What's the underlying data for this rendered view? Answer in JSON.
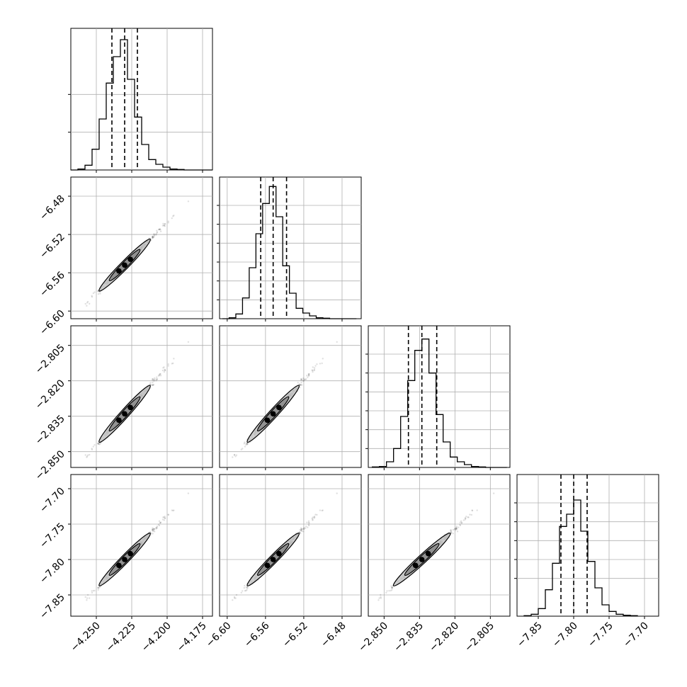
{
  "chart_data": {
    "type": "corner",
    "title": "",
    "parameters": [
      {
        "name": "",
        "range": [
          -4.268,
          -4.168
        ],
        "ticks": [
          -4.25,
          -4.225,
          -4.2,
          -4.175
        ],
        "tick_labels": [
          "−4.250",
          "−4.225",
          "−4.200",
          "−4.175"
        ],
        "quantiles": [
          -4.239,
          -4.23,
          -4.221
        ],
        "hist_bins": [
          -4.268,
          -4.263,
          -4.258,
          -4.253,
          -4.248,
          -4.243,
          -4.238,
          -4.233,
          -4.228,
          -4.223,
          -4.218,
          -4.213,
          -4.208,
          -4.203,
          -4.198,
          -4.193,
          -4.188,
          -4.183,
          -4.178,
          -4.173,
          -4.168
        ],
        "hist_counts": [
          0,
          1,
          5,
          22,
          54,
          92,
          120,
          138,
          96,
          56,
          27,
          11,
          6,
          3,
          1,
          0.5,
          0,
          0,
          0,
          0
        ],
        "hist_ymax": 150,
        "hist_ticks": [
          40,
          80
        ]
      },
      {
        "name": "",
        "range": [
          -6.608,
          -6.46
        ],
        "ticks": [
          -6.6,
          -6.56,
          -6.52,
          -6.48
        ],
        "tick_labels": [
          "−6.60",
          "−6.56",
          "−6.52",
          "−6.48"
        ],
        "quantiles": [
          -6.565,
          -6.552,
          -6.538
        ],
        "hist_bins": [
          -6.605,
          -6.598,
          -6.591,
          -6.584,
          -6.577,
          -6.57,
          -6.563,
          -6.556,
          -6.549,
          -6.542,
          -6.535,
          -6.528,
          -6.521,
          -6.514,
          -6.507,
          -6.5,
          -6.493,
          -6.486,
          -6.479,
          -6.472,
          -6.465
        ],
        "hist_counts": [
          0,
          1,
          5,
          22,
          54,
          90,
          122,
          140,
          108,
          56,
          27,
          11,
          6,
          3,
          1,
          0.5,
          0,
          0,
          0,
          0
        ],
        "hist_ymax": 150,
        "hist_ticks": [
          20,
          40,
          60,
          80,
          100,
          120
        ]
      },
      {
        "name": "",
        "range": [
          -2.8567,
          -2.7967
        ],
        "ticks": [
          -2.85,
          -2.835,
          -2.82,
          -2.805
        ],
        "tick_labels": [
          "−2.850",
          "−2.835",
          "−2.820",
          "−2.805"
        ],
        "quantiles": [
          -2.8397,
          -2.834,
          -2.8277
        ],
        "hist_bins": [
          -2.855,
          -2.852,
          -2.849,
          -2.846,
          -2.843,
          -2.84,
          -2.837,
          -2.834,
          -2.831,
          -2.828,
          -2.825,
          -2.822,
          -2.819,
          -2.816,
          -2.813,
          -2.81,
          -2.807,
          -2.804,
          -2.801,
          -2.798
        ],
        "hist_counts": [
          0.5,
          1,
          6,
          20,
          54,
          92,
          124,
          136,
          100,
          56,
          27,
          11,
          6,
          3,
          1,
          0.5,
          0,
          0,
          0
        ],
        "hist_ymax": 150,
        "hist_ticks": [
          20,
          40,
          60,
          80,
          100,
          120
        ]
      },
      {
        "name": "",
        "range": [
          -7.88,
          -7.68
        ],
        "ticks": [
          -7.85,
          -7.8,
          -7.75,
          -7.7
        ],
        "tick_labels": [
          "−7.85",
          "−7.80",
          "−7.75",
          "−7.70"
        ],
        "quantiles": [
          -7.818,
          -7.8,
          -7.781
        ],
        "hist_bins": [
          -7.87,
          -7.86,
          -7.85,
          -7.84,
          -7.83,
          -7.82,
          -7.81,
          -7.8,
          -7.79,
          -7.78,
          -7.77,
          -7.76,
          -7.75,
          -7.74,
          -7.73,
          -7.72,
          -7.71
        ],
        "hist_counts": [
          0.5,
          2,
          8,
          28,
          56,
          95,
          108,
          123,
          90,
          58,
          30,
          12,
          5,
          2,
          1,
          0.5
        ],
        "hist_ymax": 150,
        "hist_ticks": [
          40,
          60,
          80,
          100,
          120
        ]
      }
    ],
    "layout": "lower-triangle 4x4",
    "grid": true,
    "contour_levels": [
      "inner",
      "outer"
    ],
    "point_color": "#000000"
  }
}
